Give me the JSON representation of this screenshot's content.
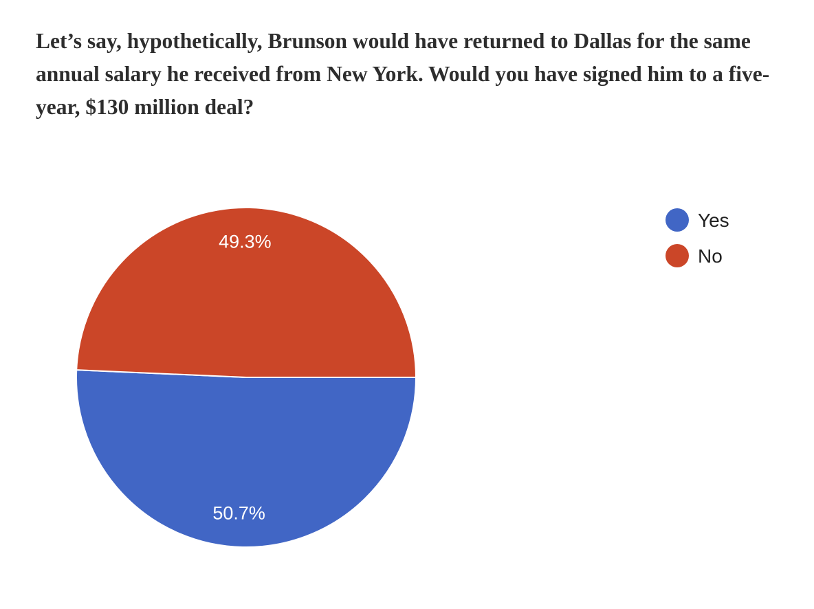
{
  "question": {
    "text": "Let’s say, hypothetically, Brunson would have returned to Dallas for the same annual salary he received from New York. Would you have signed him to a five-year, $130 million deal?"
  },
  "chart_data": {
    "type": "pie",
    "title": "Let’s say, hypothetically, Brunson would have returned to Dallas for the same annual salary he received from New York. Would you have signed him to a five-year, $130 million deal?",
    "slices": [
      {
        "label": "Yes",
        "value": 50.7,
        "display": "50.7%",
        "color": "#4166c5"
      },
      {
        "label": "No",
        "value": 49.3,
        "display": "49.3%",
        "color": "#cb4628"
      }
    ],
    "legend_position": "right"
  }
}
